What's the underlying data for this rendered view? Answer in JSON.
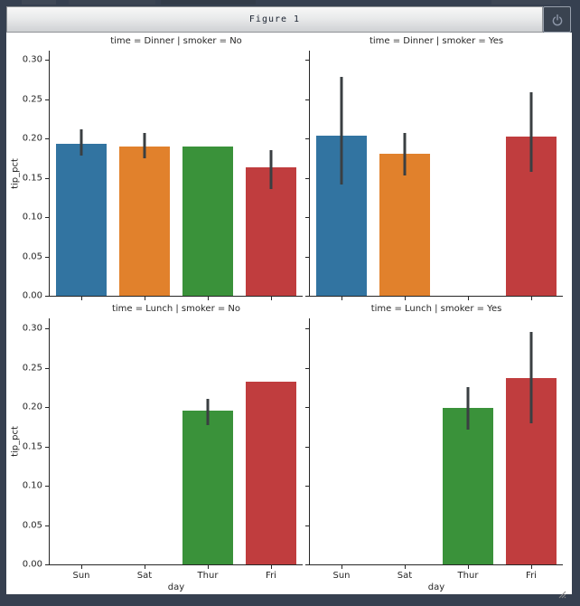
{
  "window": {
    "title": "Figure 1"
  },
  "chart_data": {
    "type": "bar",
    "library_style": "seaborn-catplot-facets",
    "categories": [
      "Sun",
      "Sat",
      "Thur",
      "Fri"
    ],
    "xlabel": "day",
    "ylabel": "tip_pct",
    "yticks": [
      0.0,
      0.05,
      0.1,
      0.15,
      0.2,
      0.25,
      0.3
    ],
    "ylim": [
      0,
      0.312
    ],
    "grid": false,
    "legend": "none",
    "palette": [
      "#3274a1",
      "#e1812c",
      "#3a923a",
      "#c03d3e"
    ],
    "error_bar_color": "#3a3f42",
    "subplots": [
      {
        "id": "dinner-no",
        "title": "time = Dinner | smoker = No",
        "row": 0,
        "col": 0,
        "values": [
          0.193,
          0.19,
          0.19,
          0.163
        ],
        "ci_low": [
          0.178,
          0.175,
          null,
          0.136
        ],
        "ci_high": [
          0.211,
          0.207,
          null,
          0.185
        ]
      },
      {
        "id": "dinner-yes",
        "title": "time = Dinner | smoker = Yes",
        "row": 0,
        "col": 1,
        "values": [
          0.203,
          0.18,
          null,
          0.202
        ],
        "ci_low": [
          0.141,
          0.153,
          null,
          0.158
        ],
        "ci_high": [
          0.278,
          0.207,
          null,
          0.259
        ]
      },
      {
        "id": "lunch-no",
        "title": "time = Lunch | smoker = No",
        "row": 1,
        "col": 0,
        "values": [
          null,
          null,
          0.195,
          0.232
        ],
        "ci_low": [
          null,
          null,
          0.177,
          null
        ],
        "ci_high": [
          null,
          null,
          0.21,
          null
        ]
      },
      {
        "id": "lunch-yes",
        "title": "time = Lunch | smoker = Yes",
        "row": 1,
        "col": 1,
        "values": [
          null,
          null,
          0.199,
          0.237
        ],
        "ci_low": [
          null,
          null,
          0.171,
          0.179
        ],
        "ci_high": [
          null,
          null,
          0.225,
          0.295
        ]
      }
    ]
  }
}
